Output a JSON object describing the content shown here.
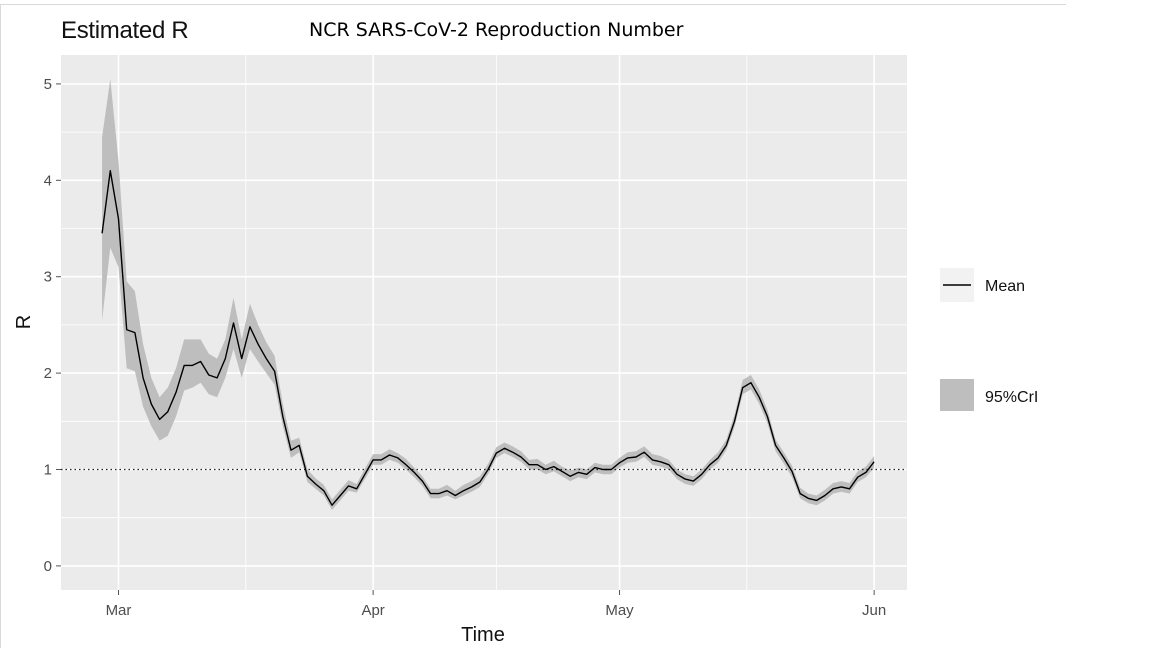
{
  "subtitle": "Estimated R",
  "title": "NCR SARS-CoV-2 Reproduction Number",
  "colors": {
    "panel": "#ebebeb",
    "grid": "#ffffff",
    "ribbon": "#bebebe",
    "line": "#000000",
    "tick_text": "#4d4d4d"
  },
  "chart_data": {
    "type": "line",
    "xlabel": "Time",
    "ylabel": "R",
    "x_ticks": [
      "Mar",
      "Apr",
      "May",
      "Jun"
    ],
    "x_tick_dates": [
      "2020-03-01",
      "2020-04-01",
      "2020-05-01",
      "2020-06-01"
    ],
    "xlim": [
      "2020-02-23",
      "2020-06-05"
    ],
    "y_ticks": [
      "0",
      "1",
      "2",
      "3",
      "4",
      "5"
    ],
    "ylim": [
      -0.25,
      5.3
    ],
    "reference_line": {
      "y": 1,
      "style": "dotted"
    },
    "grid": true,
    "legend_placement": "right",
    "legend": [
      {
        "label": "Mean",
        "kind": "line"
      },
      {
        "label": "95%CrI",
        "kind": "ribbon"
      }
    ],
    "series": [
      {
        "name": "Mean",
        "points": [
          [
            "2020-02-28",
            3.45
          ],
          [
            "2020-02-29",
            4.1
          ],
          [
            "2020-03-01",
            3.6
          ],
          [
            "2020-03-02",
            2.45
          ],
          [
            "2020-03-03",
            2.42
          ],
          [
            "2020-03-04",
            1.95
          ],
          [
            "2020-03-05",
            1.68
          ],
          [
            "2020-03-06",
            1.52
          ],
          [
            "2020-03-07",
            1.6
          ],
          [
            "2020-03-08",
            1.8
          ],
          [
            "2020-03-09",
            2.08
          ],
          [
            "2020-03-10",
            2.08
          ],
          [
            "2020-03-11",
            2.12
          ],
          [
            "2020-03-12",
            1.98
          ],
          [
            "2020-03-13",
            1.95
          ],
          [
            "2020-03-14",
            2.15
          ],
          [
            "2020-03-15",
            2.52
          ],
          [
            "2020-03-16",
            2.15
          ],
          [
            "2020-03-17",
            2.48
          ],
          [
            "2020-03-18",
            2.3
          ],
          [
            "2020-03-19",
            2.15
          ],
          [
            "2020-03-20",
            2.02
          ],
          [
            "2020-03-21",
            1.55
          ],
          [
            "2020-03-22",
            1.2
          ],
          [
            "2020-03-23",
            1.25
          ],
          [
            "2020-03-24",
            0.93
          ],
          [
            "2020-03-25",
            0.85
          ],
          [
            "2020-03-26",
            0.78
          ],
          [
            "2020-03-27",
            0.63
          ],
          [
            "2020-03-28",
            0.73
          ],
          [
            "2020-03-29",
            0.83
          ],
          [
            "2020-03-30",
            0.8
          ],
          [
            "2020-03-31",
            0.95
          ],
          [
            "2020-04-01",
            1.1
          ],
          [
            "2020-04-02",
            1.1
          ],
          [
            "2020-04-03",
            1.15
          ],
          [
            "2020-04-04",
            1.12
          ],
          [
            "2020-04-05",
            1.05
          ],
          [
            "2020-04-06",
            0.97
          ],
          [
            "2020-04-07",
            0.88
          ],
          [
            "2020-04-08",
            0.75
          ],
          [
            "2020-04-09",
            0.75
          ],
          [
            "2020-04-10",
            0.78
          ],
          [
            "2020-04-11",
            0.73
          ],
          [
            "2020-04-12",
            0.78
          ],
          [
            "2020-04-13",
            0.82
          ],
          [
            "2020-04-14",
            0.87
          ],
          [
            "2020-04-15",
            1.0
          ],
          [
            "2020-04-16",
            1.17
          ],
          [
            "2020-04-17",
            1.22
          ],
          [
            "2020-04-18",
            1.18
          ],
          [
            "2020-04-19",
            1.13
          ],
          [
            "2020-04-20",
            1.05
          ],
          [
            "2020-04-21",
            1.05
          ],
          [
            "2020-04-22",
            1.0
          ],
          [
            "2020-04-23",
            1.03
          ],
          [
            "2020-04-24",
            0.98
          ],
          [
            "2020-04-25",
            0.93
          ],
          [
            "2020-04-26",
            0.97
          ],
          [
            "2020-04-27",
            0.95
          ],
          [
            "2020-04-28",
            1.02
          ],
          [
            "2020-04-29",
            1.0
          ],
          [
            "2020-04-30",
            1.0
          ],
          [
            "2020-05-01",
            1.07
          ],
          [
            "2020-05-02",
            1.12
          ],
          [
            "2020-05-03",
            1.13
          ],
          [
            "2020-05-04",
            1.18
          ],
          [
            "2020-05-05",
            1.1
          ],
          [
            "2020-05-06",
            1.08
          ],
          [
            "2020-05-07",
            1.05
          ],
          [
            "2020-05-08",
            0.95
          ],
          [
            "2020-05-09",
            0.9
          ],
          [
            "2020-05-10",
            0.88
          ],
          [
            "2020-05-11",
            0.95
          ],
          [
            "2020-05-12",
            1.05
          ],
          [
            "2020-05-13",
            1.12
          ],
          [
            "2020-05-14",
            1.25
          ],
          [
            "2020-05-15",
            1.5
          ],
          [
            "2020-05-16",
            1.85
          ],
          [
            "2020-05-17",
            1.9
          ],
          [
            "2020-05-18",
            1.75
          ],
          [
            "2020-05-19",
            1.55
          ],
          [
            "2020-05-20",
            1.25
          ],
          [
            "2020-05-21",
            1.12
          ],
          [
            "2020-05-22",
            0.98
          ],
          [
            "2020-05-23",
            0.75
          ],
          [
            "2020-05-24",
            0.7
          ],
          [
            "2020-05-25",
            0.68
          ],
          [
            "2020-05-26",
            0.73
          ],
          [
            "2020-05-27",
            0.8
          ],
          [
            "2020-05-28",
            0.82
          ],
          [
            "2020-05-29",
            0.8
          ],
          [
            "2020-05-30",
            0.92
          ],
          [
            "2020-05-31",
            0.97
          ],
          [
            "2020-06-01",
            1.08
          ]
        ]
      },
      {
        "name": "95%CrI",
        "lower": [
          2.55,
          3.3,
          3.1,
          2.05,
          2.02,
          1.65,
          1.45,
          1.3,
          1.35,
          1.55,
          1.82,
          1.85,
          1.9,
          1.78,
          1.75,
          1.95,
          2.25,
          1.95,
          2.25,
          2.12,
          2.0,
          1.88,
          1.45,
          1.12,
          1.18,
          0.87,
          0.8,
          0.73,
          0.58,
          0.68,
          0.78,
          0.76,
          0.9,
          1.05,
          1.05,
          1.1,
          1.07,
          1.0,
          0.92,
          0.83,
          0.7,
          0.7,
          0.73,
          0.69,
          0.73,
          0.77,
          0.82,
          0.95,
          1.12,
          1.17,
          1.13,
          1.08,
          1.0,
          1.0,
          0.95,
          0.98,
          0.93,
          0.88,
          0.92,
          0.9,
          0.97,
          0.95,
          0.95,
          1.02,
          1.07,
          1.08,
          1.13,
          1.05,
          1.03,
          1.0,
          0.9,
          0.85,
          0.83,
          0.9,
          1.0,
          1.07,
          1.2,
          1.44,
          1.78,
          1.83,
          1.68,
          1.48,
          1.19,
          1.06,
          0.92,
          0.7,
          0.65,
          0.63,
          0.68,
          0.75,
          0.77,
          0.75,
          0.87,
          0.92,
          1.02
        ],
        "upper": [
          4.45,
          5.05,
          4.2,
          2.95,
          2.85,
          2.3,
          1.95,
          1.75,
          1.85,
          2.05,
          2.35,
          2.35,
          2.35,
          2.2,
          2.15,
          2.35,
          2.78,
          2.35,
          2.72,
          2.5,
          2.32,
          2.18,
          1.68,
          1.3,
          1.33,
          1.0,
          0.91,
          0.84,
          0.69,
          0.79,
          0.89,
          0.85,
          1.01,
          1.16,
          1.16,
          1.21,
          1.17,
          1.11,
          1.02,
          0.93,
          0.8,
          0.8,
          0.84,
          0.78,
          0.84,
          0.88,
          0.93,
          1.06,
          1.23,
          1.28,
          1.24,
          1.19,
          1.1,
          1.11,
          1.05,
          1.09,
          1.03,
          0.99,
          1.02,
          1.0,
          1.07,
          1.05,
          1.05,
          1.12,
          1.18,
          1.19,
          1.24,
          1.16,
          1.14,
          1.1,
          1.0,
          0.95,
          0.93,
          1.0,
          1.1,
          1.18,
          1.31,
          1.57,
          1.93,
          1.98,
          1.83,
          1.62,
          1.31,
          1.18,
          1.04,
          0.81,
          0.75,
          0.73,
          0.79,
          0.86,
          0.88,
          0.86,
          0.98,
          1.03,
          1.14
        ]
      }
    ]
  }
}
